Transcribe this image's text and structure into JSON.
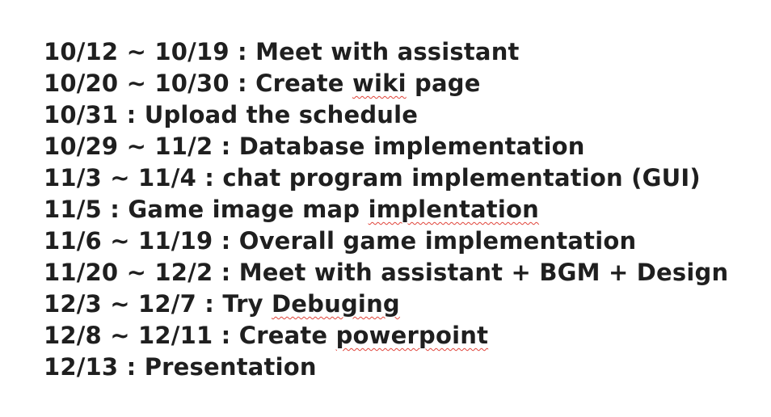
{
  "schedule": {
    "items": [
      {
        "pre": "10/12 ~ 10/19 : Meet with assistant",
        "mis": "",
        "post": ""
      },
      {
        "pre": "10/20 ~ 10/30 : Create ",
        "mis": "wiki",
        "post": " page"
      },
      {
        "pre": "10/31 : Upload the schedule",
        "mis": "",
        "post": ""
      },
      {
        "pre": "10/29 ~ 11/2 : Database implementation",
        "mis": "",
        "post": ""
      },
      {
        "pre": "11/3 ~ 11/4 : chat program implementation (GUI)",
        "mis": "",
        "post": ""
      },
      {
        "pre": "11/5 : Game image map ",
        "mis": "implentation",
        "post": ""
      },
      {
        "pre": "11/6 ~ 11/19 : Overall game implementation",
        "mis": "",
        "post": ""
      },
      {
        "pre": "11/20 ~ 12/2 : Meet with assistant + BGM + Design",
        "mis": "",
        "post": ""
      },
      {
        "pre": "12/3 ~ 12/7 : Try ",
        "mis": "Debuging",
        "post": ""
      },
      {
        "pre": "12/8 ~ 12/11 : Create ",
        "mis": "powerpoint",
        "post": ""
      },
      {
        "pre": "12/13 : Presentation",
        "mis": "",
        "post": ""
      }
    ]
  }
}
